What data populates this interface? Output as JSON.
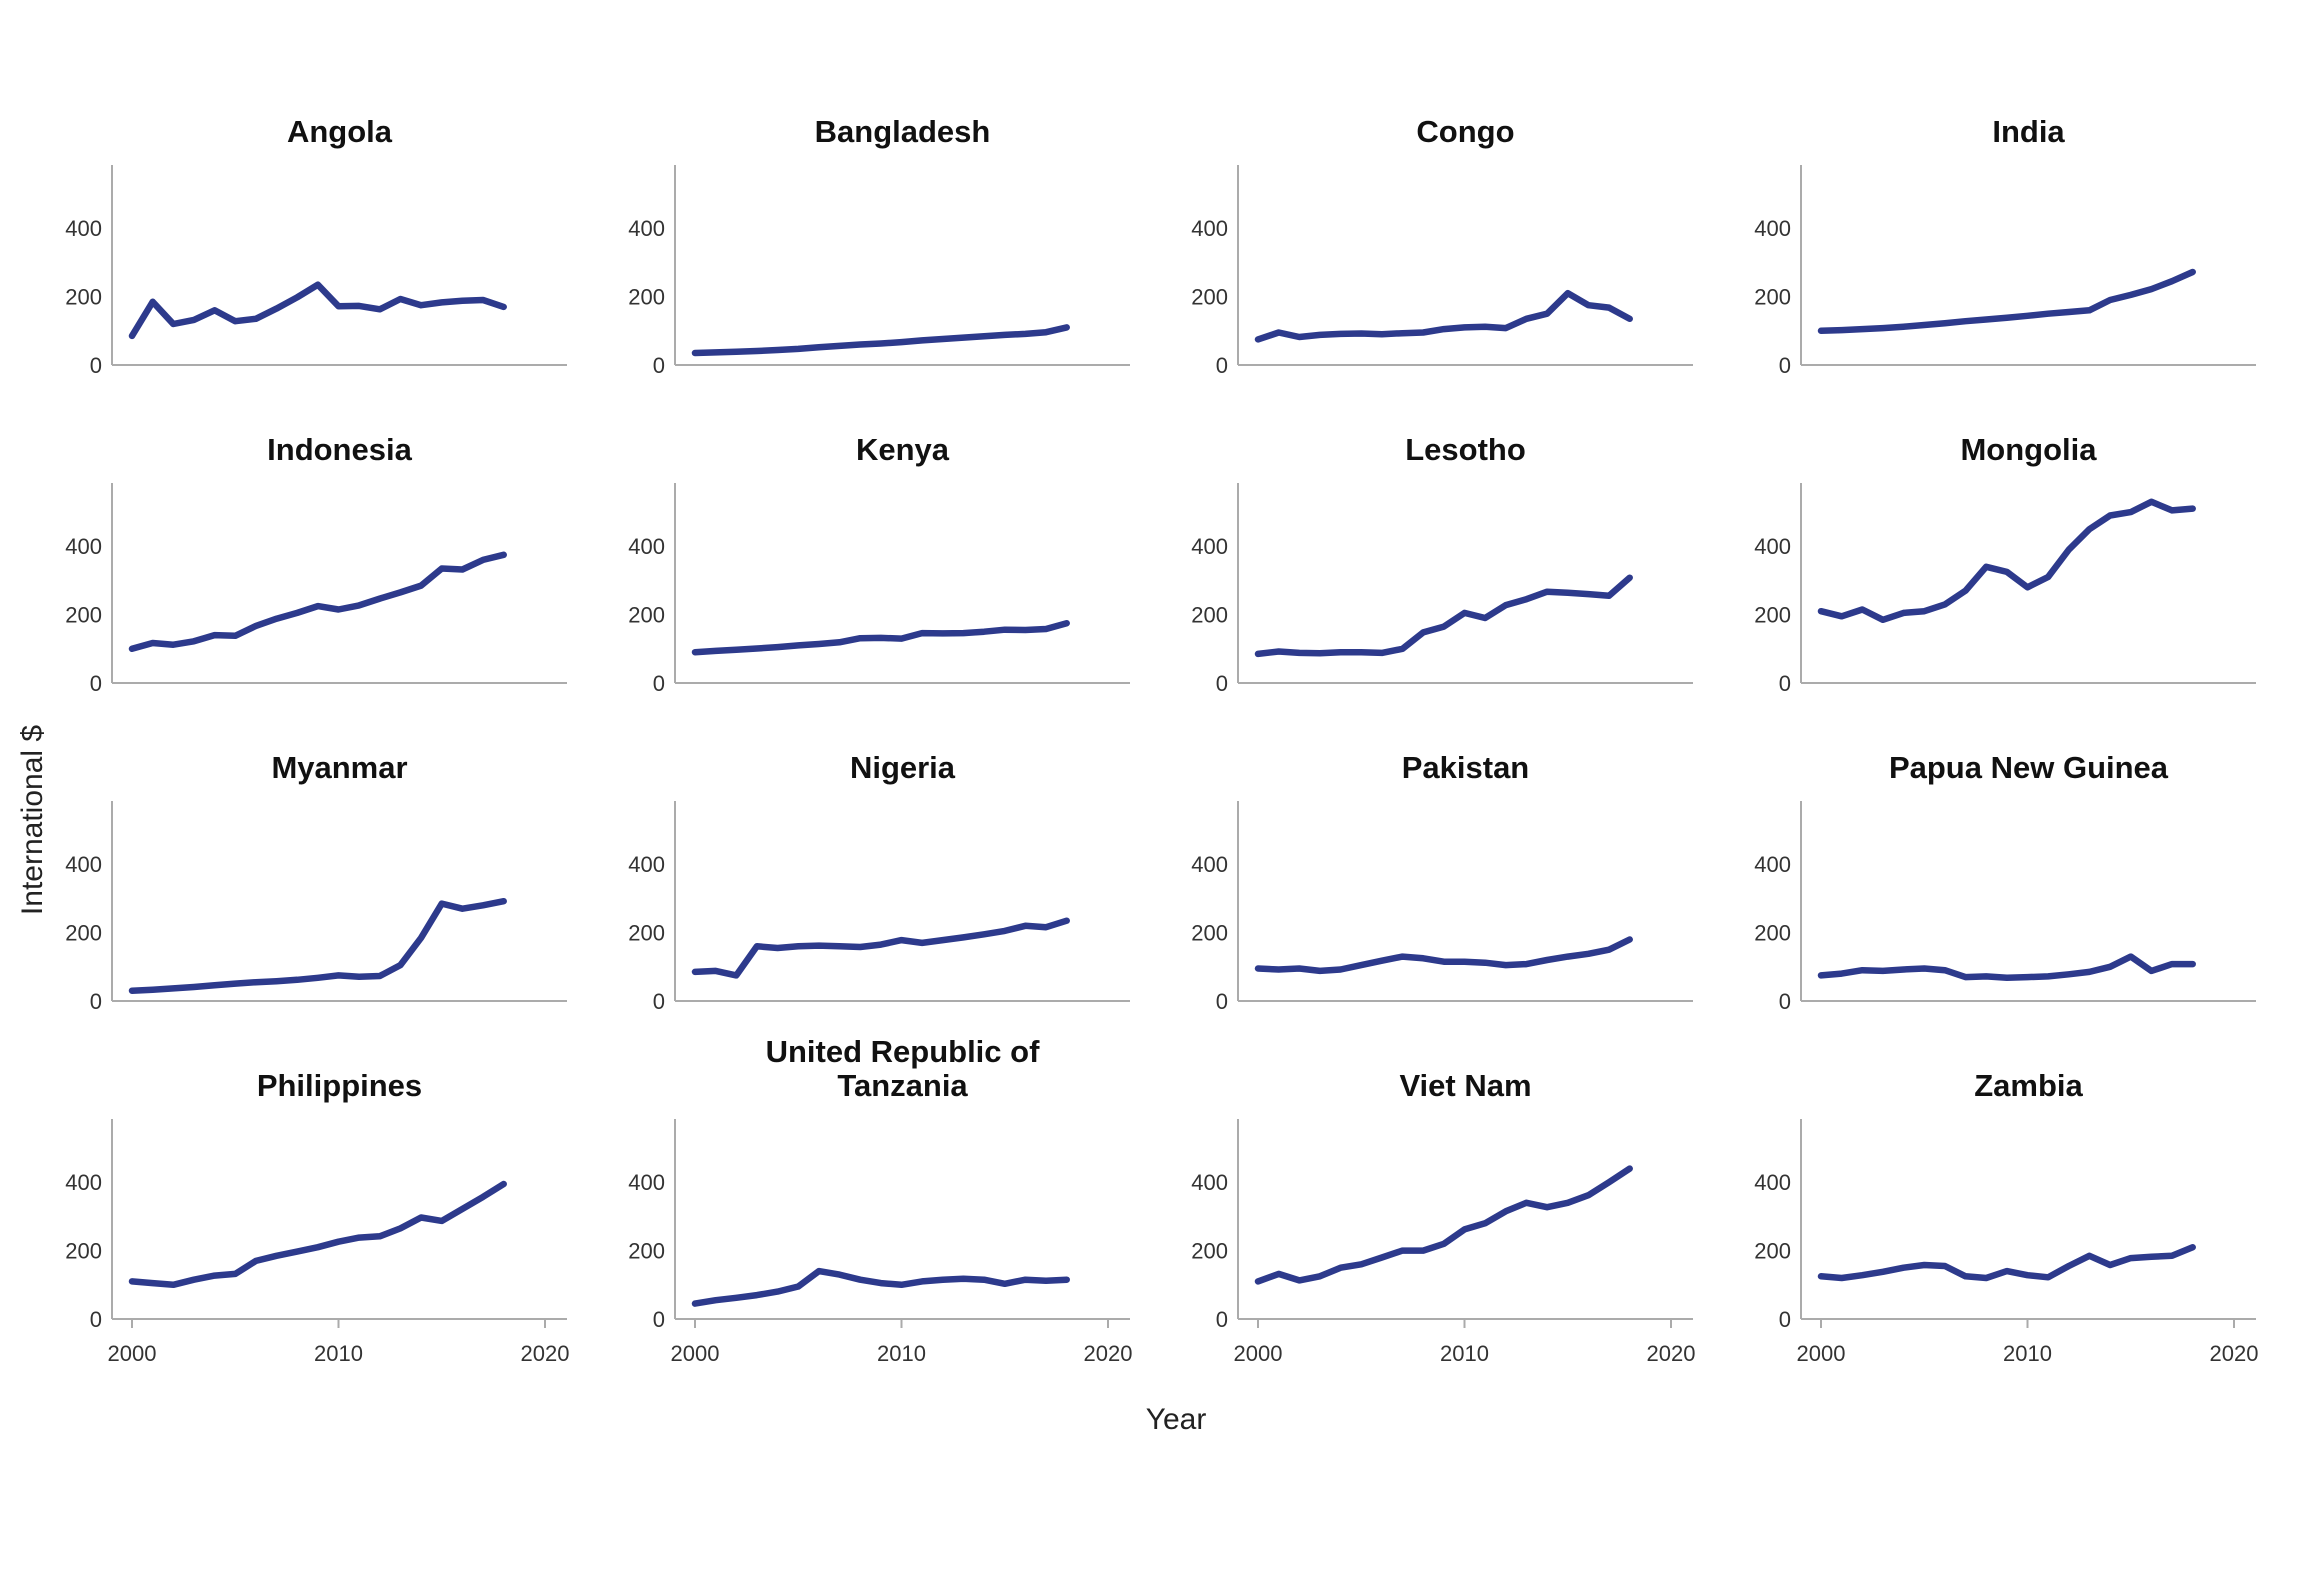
{
  "figure": {
    "ylabel": "International $",
    "xlabel": "Year",
    "y_tick_labels": [
      "0",
      "200",
      "400"
    ],
    "x_tick_labels": [
      "2000",
      "2010",
      "2020"
    ],
    "line_color": "#2d3a8c",
    "axis_color": "#ababab",
    "tick_text_color": "#333333",
    "grid": "off",
    "legend": "none"
  },
  "chart_data": {
    "type": "line",
    "layout": "facet_grid_4x4",
    "title": "",
    "xlabel": "Year",
    "ylabel": "International $",
    "xlim": [
      1999,
      2021
    ],
    "ylim": [
      0,
      585
    ],
    "x_ticks": [
      2000,
      2010,
      2020
    ],
    "y_ticks": [
      0,
      200,
      400
    ],
    "x": [
      2000,
      2001,
      2002,
      2003,
      2004,
      2005,
      2006,
      2007,
      2008,
      2009,
      2010,
      2011,
      2012,
      2013,
      2014,
      2015,
      2016,
      2017,
      2018
    ],
    "series": [
      {
        "name": "Angola",
        "values": [
          85,
          185,
          120,
          132,
          160,
          128,
          135,
          165,
          198,
          235,
          172,
          173,
          163,
          193,
          175,
          183,
          188,
          190,
          170
        ]
      },
      {
        "name": "Bangladesh",
        "values": [
          35,
          37,
          39,
          41,
          44,
          47,
          52,
          56,
          60,
          63,
          67,
          72,
          76,
          80,
          84,
          88,
          91,
          96,
          110
        ]
      },
      {
        "name": "Congo",
        "values": [
          75,
          95,
          82,
          88,
          91,
          92,
          90,
          93,
          95,
          105,
          110,
          112,
          108,
          135,
          150,
          210,
          175,
          168,
          135
        ]
      },
      {
        "name": "India",
        "values": [
          100,
          102,
          105,
          108,
          112,
          117,
          122,
          128,
          133,
          138,
          144,
          150,
          155,
          160,
          190,
          205,
          222,
          245,
          272
        ]
      },
      {
        "name": "Indonesia",
        "values": [
          100,
          117,
          112,
          122,
          140,
          138,
          167,
          188,
          205,
          225,
          215,
          227,
          247,
          265,
          285,
          335,
          332,
          360,
          375
        ]
      },
      {
        "name": "Kenya",
        "values": [
          90,
          94,
          97,
          101,
          105,
          110,
          114,
          119,
          131,
          132,
          130,
          146,
          145,
          146,
          150,
          156,
          155,
          158,
          175
        ]
      },
      {
        "name": "Lesotho",
        "values": [
          85,
          92,
          88,
          87,
          90,
          90,
          88,
          100,
          148,
          165,
          205,
          190,
          228,
          245,
          267,
          264,
          260,
          255,
          308
        ]
      },
      {
        "name": "Mongolia",
        "values": [
          210,
          195,
          215,
          185,
          205,
          210,
          230,
          270,
          340,
          325,
          280,
          310,
          390,
          450,
          490,
          500,
          530,
          505,
          510
        ]
      },
      {
        "name": "Myanmar",
        "values": [
          30,
          33,
          37,
          41,
          46,
          51,
          55,
          58,
          62,
          68,
          75,
          71,
          73,
          105,
          185,
          285,
          270,
          280,
          292
        ]
      },
      {
        "name": "Nigeria",
        "values": [
          85,
          88,
          75,
          160,
          155,
          160,
          162,
          160,
          158,
          165,
          178,
          170,
          178,
          186,
          195,
          205,
          220,
          216,
          235
        ]
      },
      {
        "name": "Pakistan",
        "values": [
          95,
          92,
          95,
          88,
          92,
          105,
          118,
          130,
          125,
          115,
          115,
          112,
          105,
          108,
          120,
          130,
          138,
          150,
          180
        ]
      },
      {
        "name": "Papua New Guinea",
        "values": [
          75,
          80,
          90,
          88,
          92,
          95,
          90,
          70,
          72,
          68,
          70,
          72,
          78,
          85,
          100,
          130,
          88,
          108,
          108
        ]
      },
      {
        "name": "Philippines",
        "values": [
          110,
          105,
          100,
          115,
          127,
          132,
          170,
          185,
          197,
          210,
          226,
          238,
          242,
          265,
          297,
          287,
          322,
          357,
          395
        ]
      },
      {
        "name": "United Republic of Tanzania",
        "values": [
          45,
          55,
          62,
          70,
          80,
          95,
          140,
          130,
          115,
          105,
          100,
          110,
          115,
          118,
          115,
          103,
          115,
          112,
          115
        ]
      },
      {
        "name": "Viet Nam",
        "values": [
          110,
          132,
          113,
          125,
          150,
          160,
          180,
          200,
          200,
          220,
          262,
          280,
          315,
          340,
          327,
          340,
          362,
          400,
          440
        ]
      },
      {
        "name": "Zambia",
        "values": [
          125,
          120,
          128,
          138,
          150,
          158,
          155,
          125,
          120,
          140,
          128,
          122,
          155,
          185,
          158,
          178,
          182,
          185,
          210
        ]
      }
    ]
  }
}
